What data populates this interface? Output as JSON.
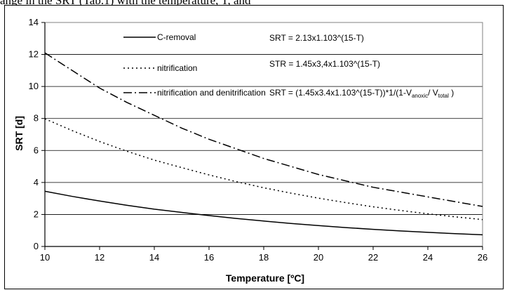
{
  "header_text": "ange in the SRT (Tab.1) with the temperature, T, and",
  "chart_data": {
    "type": "line",
    "xlabel": "Temperature [ºC]",
    "ylabel": "SRT [d]",
    "xlim": [
      10,
      26
    ],
    "ylim": [
      0,
      14
    ],
    "xticks": [
      10,
      12,
      14,
      16,
      18,
      20,
      22,
      24,
      26
    ],
    "yticks": [
      0,
      2,
      4,
      6,
      8,
      10,
      12,
      14
    ],
    "grid": "horizontal",
    "series": [
      {
        "name": "C-removal",
        "dash": "solid",
        "x": [
          10,
          11,
          12,
          13,
          14,
          15,
          16,
          17,
          18,
          19,
          20,
          21,
          22,
          23,
          24,
          25,
          26
        ],
        "values": [
          3.45,
          3.13,
          2.84,
          2.57,
          2.33,
          2.13,
          1.93,
          1.75,
          1.59,
          1.44,
          1.31,
          1.18,
          1.07,
          0.97,
          0.88,
          0.8,
          0.73
        ]
      },
      {
        "name": "nitrification",
        "dash": "dotted",
        "x": [
          10,
          11,
          12,
          13,
          14,
          15,
          16,
          17,
          18,
          19,
          20,
          21,
          22,
          23,
          24,
          25,
          26
        ],
        "values": [
          7.98,
          7.24,
          6.56,
          5.95,
          5.4,
          4.93,
          4.47,
          4.05,
          3.67,
          3.33,
          3.02,
          2.74,
          2.48,
          2.25,
          2.04,
          1.85,
          1.68
        ]
      },
      {
        "name": "nitrification and denitrification",
        "dash": "dashdot",
        "x": [
          10,
          11,
          12,
          13,
          14,
          15,
          16,
          17,
          18,
          19,
          20,
          21,
          22,
          23,
          24,
          25,
          26
        ],
        "values": [
          12.1,
          11.0,
          9.9,
          9.0,
          8.2,
          7.4,
          6.7,
          6.1,
          5.5,
          5.0,
          4.5,
          4.1,
          3.7,
          3.4,
          3.1,
          2.8,
          2.5
        ]
      }
    ],
    "equations": [
      {
        "text": "SRT = 2.13x1.103^(15-T)"
      },
      {
        "text": "STR = 1.45x3,4x1.103^(15-T)"
      },
      {
        "prefix": "SRT = (1.45x3.4x1.103^(15-T))*1/(1-V",
        "sub1": "anoxic",
        "mid": "/ V",
        "sub2": "total",
        "suffix": " )"
      }
    ]
  }
}
